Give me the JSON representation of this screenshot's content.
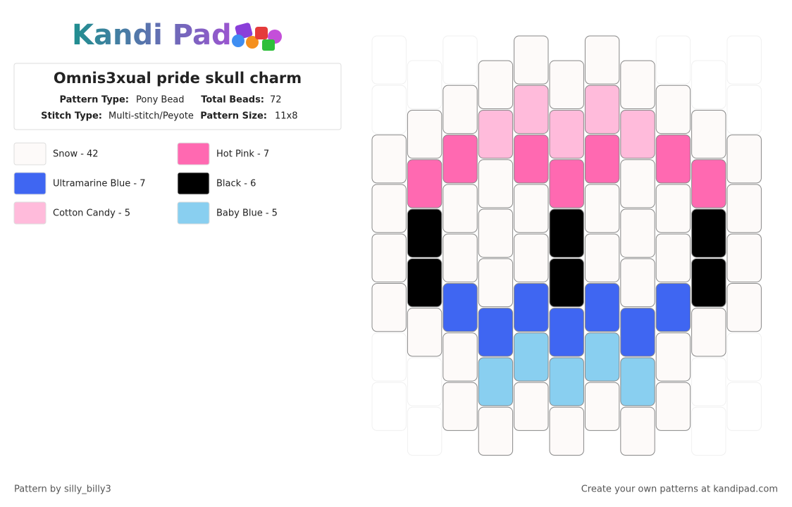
{
  "header": {
    "logo": "Kandi Pad",
    "title": "Omnis3xual pride skull charm"
  },
  "info": [
    {
      "label": "Pattern Type:",
      "value": "Pony Bead"
    },
    {
      "label": "Total Beads:",
      "value": "72"
    },
    {
      "label": "Stitch Type:",
      "value": "Multi-stitch/Peyote"
    },
    {
      "label": "Pattern Size:",
      "value": "11x8"
    }
  ],
  "legend": [
    {
      "label": "Snow - 42",
      "color": "#fdfaf9"
    },
    {
      "label": "Hot Pink - 7",
      "color": "#ff69b1"
    },
    {
      "label": "Ultramarine Blue - 7",
      "color": "#3f66f2"
    },
    {
      "label": "Black - 6",
      "color": "#000000"
    },
    {
      "label": "Cotton Candy - 5",
      "color": "#ffbbdb"
    },
    {
      "label": "Baby Blue - 5",
      "color": "#89cff0"
    }
  ],
  "pattern": {
    "columns": [
      [
        null,
        null,
        0,
        0,
        0,
        0,
        null,
        null
      ],
      [
        null,
        0,
        1,
        3,
        3,
        0,
        null,
        null
      ],
      [
        null,
        0,
        1,
        0,
        0,
        2,
        0,
        0
      ],
      [
        0,
        4,
        0,
        0,
        0,
        2,
        5,
        0
      ],
      [
        0,
        4,
        1,
        0,
        0,
        2,
        5,
        0
      ],
      [
        0,
        4,
        1,
        3,
        3,
        2,
        5,
        0
      ],
      [
        0,
        4,
        1,
        0,
        0,
        2,
        5,
        0
      ],
      [
        0,
        4,
        0,
        0,
        0,
        2,
        5,
        0
      ],
      [
        null,
        0,
        1,
        0,
        0,
        2,
        0,
        0
      ],
      [
        null,
        0,
        1,
        3,
        3,
        0,
        null,
        null
      ],
      [
        null,
        null,
        0,
        0,
        0,
        0,
        null,
        null
      ]
    ]
  },
  "footer": {
    "credit": "Pattern by silly_billy3",
    "link": "Create your own patterns at kandipad.com"
  }
}
